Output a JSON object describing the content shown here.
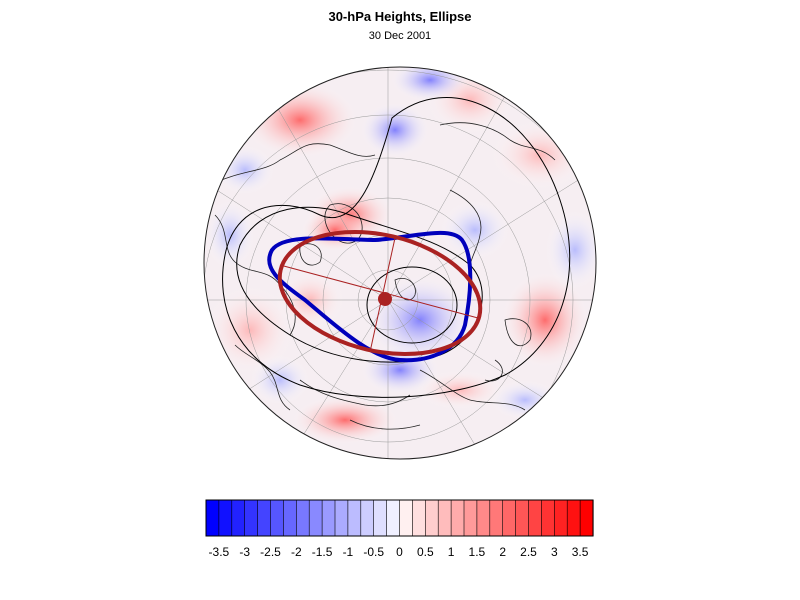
{
  "figure": {
    "title": "30-hPa Heights, Ellipse",
    "subtitle": "30 Dec 2001"
  },
  "map": {
    "projection": "polar stereographic",
    "hemisphere": "northern"
  },
  "colorbar": {
    "orientation": "horizontal",
    "tick_labels": [
      "-3.5",
      "-3",
      "-2.5",
      "-2",
      "-1.5",
      "-1",
      "-0.5",
      "0",
      "0.5",
      "1",
      "1.5",
      "2",
      "2.5",
      "3",
      "3.5"
    ],
    "levels": 30,
    "negative_color": "#0000ff",
    "positive_color": "#ff0000",
    "neutral_color": "#ffffff"
  },
  "overlays": {
    "climatological_ellipse_color": "#0000bb",
    "daily_ellipse_color": "#aa2222",
    "contour_color": "#000000"
  }
}
